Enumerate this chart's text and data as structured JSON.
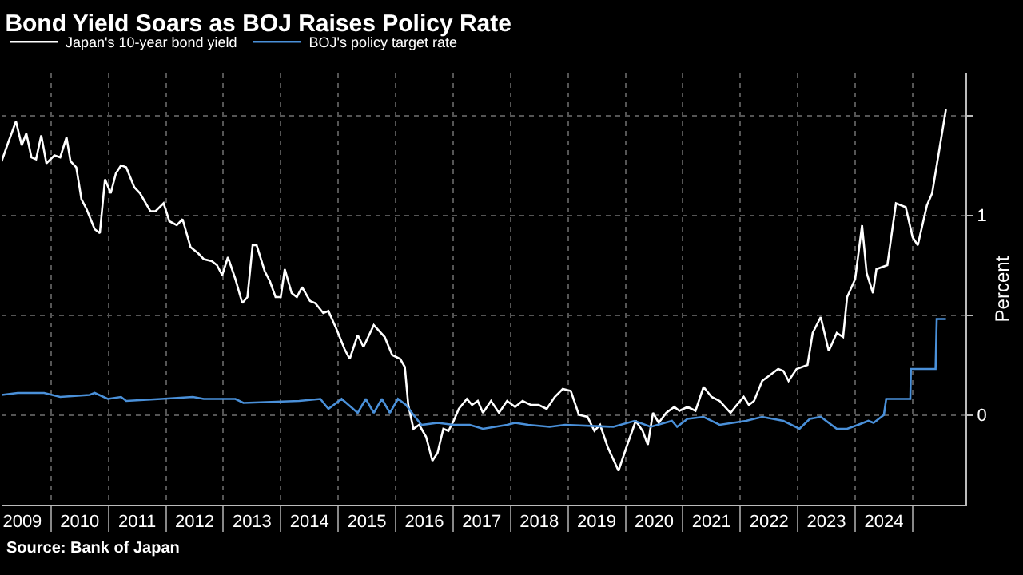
{
  "chart_data": {
    "type": "line",
    "title": "Bond Yield Soars as BOJ Raises Policy Rate",
    "ylabel": "Percent",
    "annotations": [
      "Source: Bank of Japan"
    ],
    "series": [
      {
        "name": "Japan's 10-year bond yield",
        "color": "#ffffff",
        "x": [
          2009.14,
          2009.25,
          2009.39,
          2009.49,
          2009.57,
          2009.66,
          2009.74,
          2009.83,
          2009.92,
          2010.06,
          2010.16,
          2010.27,
          2010.34,
          2010.44,
          2010.53,
          2010.62,
          2010.76,
          2010.85,
          2010.94,
          2011.04,
          2011.13,
          2011.22,
          2011.31,
          2011.45,
          2011.55,
          2011.73,
          2011.82,
          2011.96,
          2012.06,
          2012.19,
          2012.29,
          2012.43,
          2012.56,
          2012.66,
          2012.8,
          2012.89,
          2012.98,
          2013.08,
          2013.21,
          2013.33,
          2013.42,
          2013.51,
          2013.58,
          2013.72,
          2013.81,
          2013.91,
          2014.0,
          2014.07,
          2014.19,
          2014.28,
          2014.37,
          2014.51,
          2014.6,
          2014.74,
          2014.83,
          2014.97,
          2015.11,
          2015.2,
          2015.34,
          2015.44,
          2015.62,
          2015.81,
          2015.94,
          2016.08,
          2016.16,
          2016.22,
          2016.31,
          2016.41,
          2016.53,
          2016.64,
          2016.73,
          2016.83,
          2016.92,
          2017.01,
          2017.1,
          2017.24,
          2017.33,
          2017.43,
          2017.52,
          2017.66,
          2017.8,
          2017.94,
          2018.08,
          2018.21,
          2018.35,
          2018.49,
          2018.63,
          2018.77,
          2018.91,
          2019.05,
          2019.19,
          2019.34,
          2019.46,
          2019.56,
          2019.69,
          2019.88,
          2020.02,
          2020.18,
          2020.3,
          2020.39,
          2020.48,
          2020.58,
          2020.71,
          2020.85,
          2020.94,
          2021.08,
          2021.22,
          2021.36,
          2021.5,
          2021.64,
          2021.83,
          2021.94,
          2022.06,
          2022.15,
          2022.24,
          2022.38,
          2022.52,
          2022.66,
          2022.75,
          2022.84,
          2022.98,
          2023.17,
          2023.26,
          2023.4,
          2023.54,
          2023.68,
          2023.79,
          2023.86,
          2024.0,
          2024.12,
          2024.2,
          2024.31,
          2024.37,
          2024.56,
          2024.71,
          2024.88,
          2025.0,
          2025.09,
          2025.25,
          2025.34,
          2025.58
        ],
        "values": [
          1.27,
          1.36,
          1.47,
          1.35,
          1.41,
          1.29,
          1.28,
          1.4,
          1.26,
          1.3,
          1.29,
          1.39,
          1.27,
          1.24,
          1.08,
          1.03,
          0.93,
          0.91,
          1.18,
          1.11,
          1.21,
          1.25,
          1.24,
          1.14,
          1.11,
          1.02,
          1.02,
          1.06,
          0.97,
          0.95,
          0.98,
          0.84,
          0.81,
          0.78,
          0.77,
          0.75,
          0.7,
          0.79,
          0.68,
          0.56,
          0.59,
          0.85,
          0.85,
          0.72,
          0.67,
          0.59,
          0.59,
          0.73,
          0.61,
          0.59,
          0.64,
          0.57,
          0.56,
          0.51,
          0.52,
          0.43,
          0.33,
          0.28,
          0.4,
          0.34,
          0.45,
          0.39,
          0.3,
          0.28,
          0.24,
          0.05,
          -0.07,
          -0.05,
          -0.11,
          -0.23,
          -0.19,
          -0.07,
          -0.08,
          -0.03,
          0.03,
          0.08,
          0.05,
          0.07,
          0.01,
          0.07,
          0.01,
          0.07,
          0.04,
          0.07,
          0.05,
          0.05,
          0.03,
          0.09,
          0.13,
          0.12,
          0.0,
          -0.01,
          -0.08,
          -0.05,
          -0.16,
          -0.28,
          -0.16,
          -0.03,
          -0.08,
          -0.15,
          0.01,
          -0.04,
          0.01,
          0.04,
          0.02,
          0.04,
          0.02,
          0.14,
          0.09,
          0.07,
          0.01,
          0.05,
          0.09,
          0.05,
          0.07,
          0.17,
          0.2,
          0.23,
          0.22,
          0.17,
          0.23,
          0.25,
          0.41,
          0.49,
          0.32,
          0.41,
          0.39,
          0.59,
          0.68,
          0.95,
          0.71,
          0.61,
          0.73,
          0.75,
          1.06,
          1.04,
          0.89,
          0.85,
          1.05,
          1.11,
          1.53
        ]
      },
      {
        "name": "BOJ's policy target rate",
        "color": "#4a90d9",
        "x": [
          2009.14,
          2009.42,
          2009.88,
          2010.16,
          2010.67,
          2010.76,
          2010.99,
          2011.22,
          2011.31,
          2011.92,
          2012.47,
          2012.66,
          2013.21,
          2013.35,
          2014.32,
          2014.69,
          2014.83,
          2015.06,
          2015.34,
          2015.48,
          2015.62,
          2015.76,
          2015.9,
          2016.04,
          2016.18,
          2016.31,
          2016.45,
          2016.73,
          2017.01,
          2017.29,
          2017.52,
          2017.94,
          2018.08,
          2018.31,
          2018.68,
          2018.95,
          2019.79,
          2020.16,
          2020.44,
          2020.81,
          2020.9,
          2021.08,
          2021.36,
          2021.64,
          2022.1,
          2022.38,
          2022.75,
          2023.03,
          2023.21,
          2023.4,
          2023.68,
          2023.86,
          2024.05,
          2024.23,
          2024.32,
          2024.5,
          2024.54,
          2024.96,
          2024.97,
          2025.4,
          2025.42,
          2025.58
        ],
        "values": [
          0.1,
          0.11,
          0.11,
          0.09,
          0.1,
          0.11,
          0.08,
          0.09,
          0.07,
          0.08,
          0.09,
          0.08,
          0.08,
          0.06,
          0.07,
          0.08,
          0.03,
          0.08,
          0.01,
          0.08,
          0.01,
          0.08,
          0.01,
          0.08,
          0.05,
          0.0,
          -0.05,
          -0.04,
          -0.05,
          -0.05,
          -0.07,
          -0.05,
          -0.04,
          -0.05,
          -0.06,
          -0.05,
          -0.06,
          -0.03,
          -0.06,
          -0.03,
          -0.06,
          -0.02,
          -0.01,
          -0.05,
          -0.03,
          -0.01,
          -0.03,
          -0.07,
          -0.02,
          -0.01,
          -0.07,
          -0.07,
          -0.05,
          -0.03,
          -0.04,
          0.0,
          0.08,
          0.08,
          0.23,
          0.23,
          0.48,
          0.48
        ]
      }
    ],
    "xlim": [
      2009.14,
      2025.92
    ],
    "xticks": [
      {
        "value": 2009.5,
        "label": "2009"
      },
      {
        "value": 2010.5,
        "label": "2010"
      },
      {
        "value": 2011.5,
        "label": "2011"
      },
      {
        "value": 2012.5,
        "label": "2012"
      },
      {
        "value": 2013.5,
        "label": "2013"
      },
      {
        "value": 2014.5,
        "label": "2014"
      },
      {
        "value": 2015.5,
        "label": "2015"
      },
      {
        "value": 2016.5,
        "label": "2016"
      },
      {
        "value": 2017.5,
        "label": "2017"
      },
      {
        "value": 2018.5,
        "label": "2018"
      },
      {
        "value": 2019.5,
        "label": "2019"
      },
      {
        "value": 2020.5,
        "label": "2020"
      },
      {
        "value": 2021.5,
        "label": "2021"
      },
      {
        "value": 2022.5,
        "label": "2022"
      },
      {
        "value": 2023.5,
        "label": "2023"
      },
      {
        "value": 2024.5,
        "label": "2024"
      },
      {
        "value": 2010,
        "label": null
      },
      {
        "value": 2011,
        "label": null
      },
      {
        "value": 2012,
        "label": null
      },
      {
        "value": 2013,
        "label": null
      },
      {
        "value": 2014,
        "label": null
      },
      {
        "value": 2015,
        "label": null
      },
      {
        "value": 2016,
        "label": null
      },
      {
        "value": 2017,
        "label": null
      },
      {
        "value": 2018,
        "label": null
      },
      {
        "value": 2019,
        "label": null
      },
      {
        "value": 2020,
        "label": null
      },
      {
        "value": 2021,
        "label": null
      },
      {
        "value": 2022,
        "label": null
      },
      {
        "value": 2023,
        "label": null
      },
      {
        "value": 2024,
        "label": null
      },
      {
        "value": 2025,
        "label": null
      }
    ],
    "ylim": [
      -0.45,
      1.71
    ],
    "yticks": [
      0,
      {
        "value": 0.5,
        "label": null
      },
      1,
      {
        "value": 1.5,
        "label": null
      }
    ],
    "grid": true,
    "legend": "top left",
    "line_style": "solid",
    "marker": "none"
  }
}
